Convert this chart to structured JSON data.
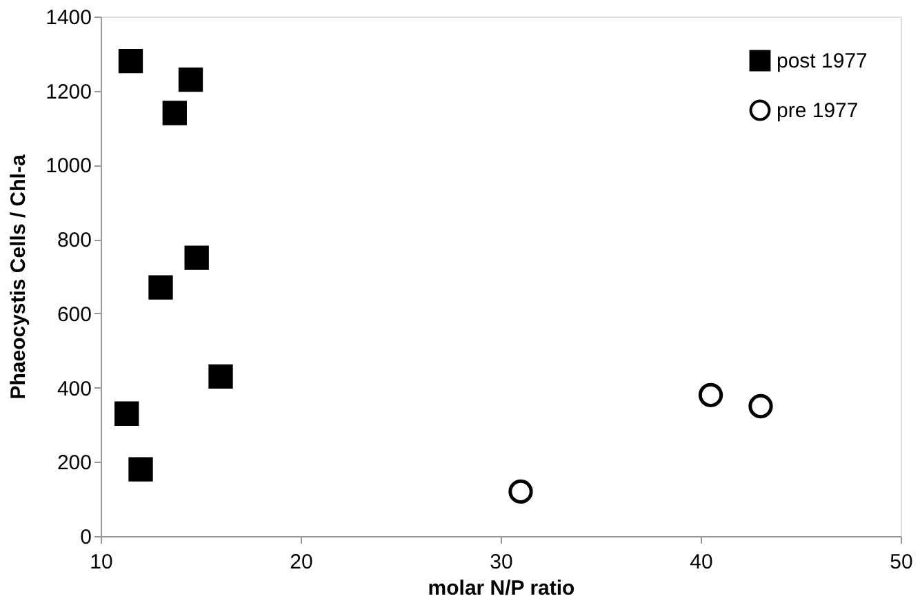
{
  "chart_data": {
    "type": "scatter",
    "xlabel": "molar N/P ratio",
    "ylabel": "Phaeocystis Cells / Chl-a",
    "xlim": [
      10,
      50
    ],
    "xticks": [
      10,
      20,
      30,
      40,
      50
    ],
    "ylim": [
      0,
      1400
    ],
    "yticks": [
      0,
      200,
      400,
      600,
      800,
      1000,
      1200,
      1400
    ],
    "grid": false,
    "legend": "top right",
    "series": [
      {
        "name": "post 1977",
        "color": "#000000",
        "marker": "square",
        "x": [
          11.5,
          14.5,
          13.7,
          14.8,
          13.0,
          16.0,
          11.3,
          12.0
        ],
        "values": [
          1280,
          1230,
          1140,
          750,
          670,
          430,
          330,
          180
        ]
      },
      {
        "name": "pre 1977",
        "color": "#000000",
        "marker": "circle",
        "x": [
          31.0,
          40.5,
          43.0
        ],
        "values": [
          120,
          380,
          350
        ]
      }
    ]
  }
}
